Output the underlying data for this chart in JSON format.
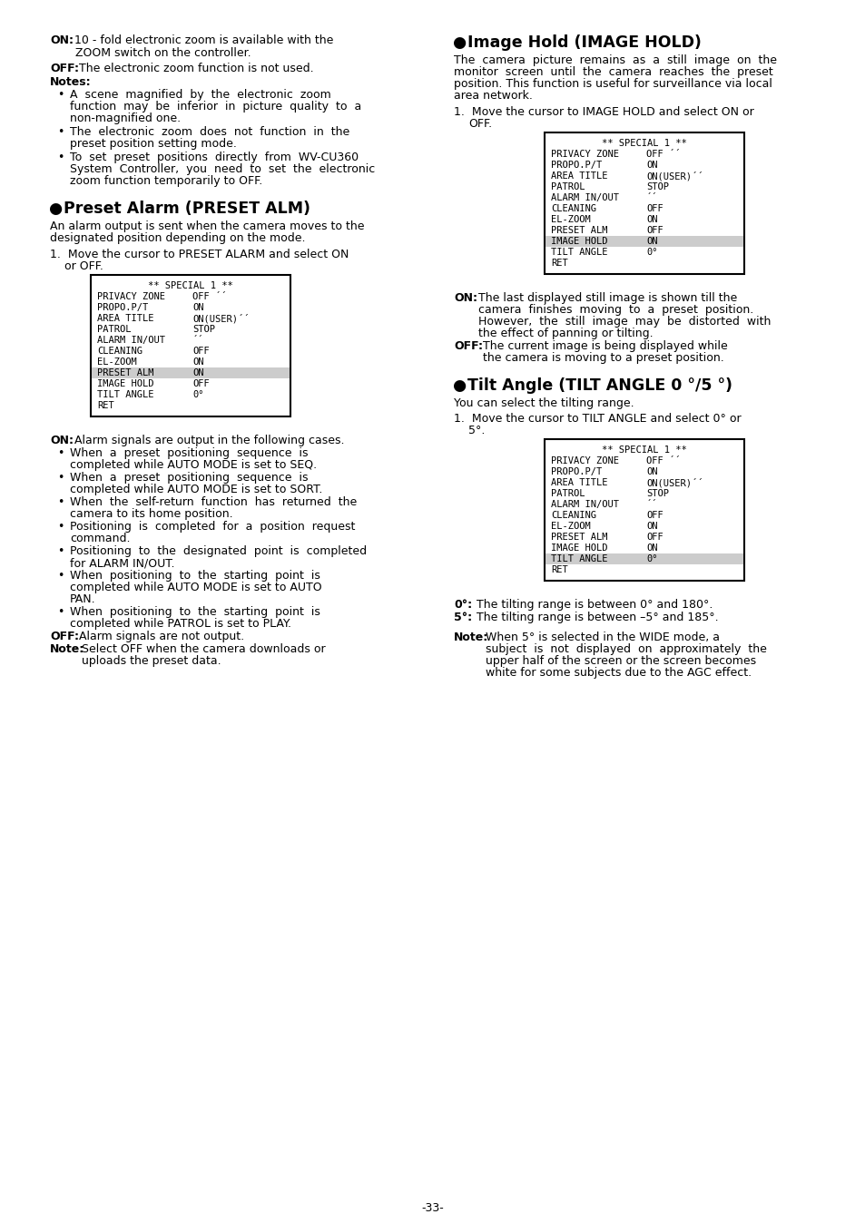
{
  "page_number": "-33-",
  "bg_color": "#ffffff",
  "sections": {
    "preset_alarm": {
      "menu1": {
        "title": "** SPECIAL 1 **",
        "lines": [
          [
            "PRIVACY ZONE",
            "OFF ´´"
          ],
          [
            "PROPO.P/T",
            "ON"
          ],
          [
            "AREA TITLE",
            "ON(USER)´´"
          ],
          [
            "PATROL",
            "STOP"
          ],
          [
            "ALARM IN/OUT",
            "´´"
          ],
          [
            "CLEANING",
            "OFF"
          ],
          [
            "EL-ZOOM",
            "ON"
          ],
          [
            "PRESET ALM",
            "ON"
          ],
          [
            "IMAGE HOLD",
            "OFF"
          ],
          [
            "TILT ANGLE",
            "0°"
          ],
          [
            "RET",
            ""
          ]
        ],
        "highlight_line": 7
      }
    },
    "image_hold": {
      "menu2": {
        "title": "** SPECIAL 1 **",
        "lines": [
          [
            "PRIVACY ZONE",
            "OFF ´´"
          ],
          [
            "PROPO.P/T",
            "ON"
          ],
          [
            "AREA TITLE",
            "ON(USER)´´"
          ],
          [
            "PATROL",
            "STOP"
          ],
          [
            "ALARM IN/OUT",
            "´´"
          ],
          [
            "CLEANING",
            "OFF"
          ],
          [
            "EL-ZOOM",
            "ON"
          ],
          [
            "PRESET ALM",
            "OFF"
          ],
          [
            "IMAGE HOLD",
            "ON"
          ],
          [
            "TILT ANGLE",
            "0°"
          ],
          [
            "RET",
            ""
          ]
        ],
        "highlight_line": 8
      }
    },
    "tilt_angle": {
      "menu3": {
        "title": "** SPECIAL 1 **",
        "lines": [
          [
            "PRIVACY ZONE",
            "OFF ´´"
          ],
          [
            "PROPO.P/T",
            "ON"
          ],
          [
            "AREA TITLE",
            "ON(USER)´´"
          ],
          [
            "PATROL",
            "STOP"
          ],
          [
            "ALARM IN/OUT",
            "´´"
          ],
          [
            "CLEANING",
            "OFF"
          ],
          [
            "EL-ZOOM",
            "ON"
          ],
          [
            "PRESET ALM",
            "OFF"
          ],
          [
            "IMAGE HOLD",
            "ON"
          ],
          [
            "TILT ANGLE",
            "0°"
          ],
          [
            "RET",
            ""
          ]
        ],
        "highlight_line": 9
      }
    }
  }
}
